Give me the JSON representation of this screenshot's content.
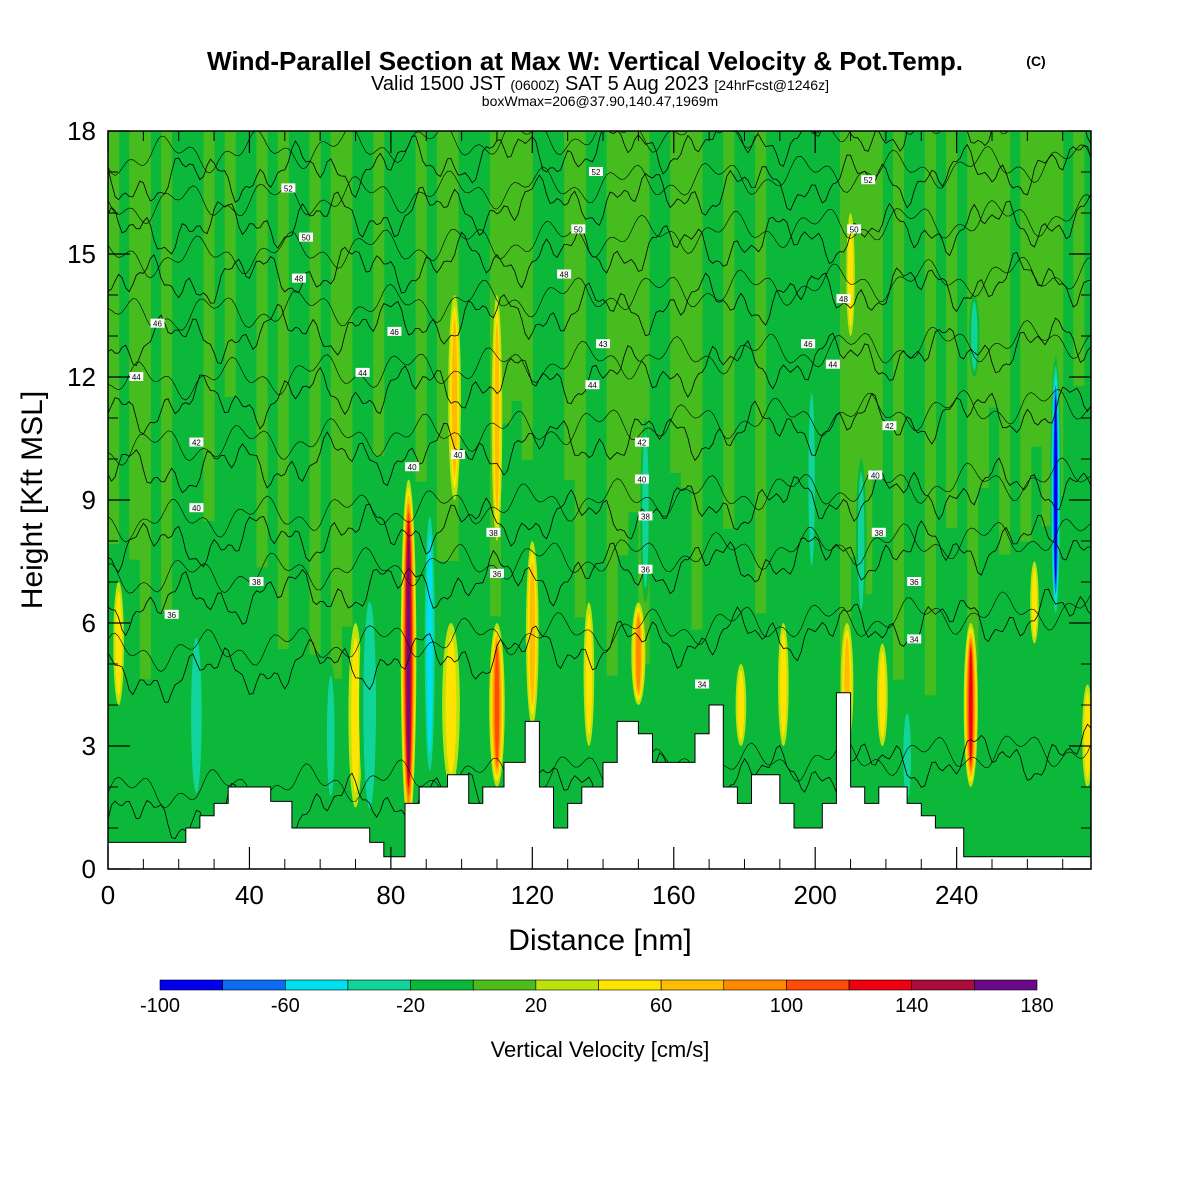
{
  "title": {
    "main": "Wind-Parallel Section at Max W: Vertical Velocity & Pot.Temp.",
    "copyright": "(C)",
    "valid_prefix": "Valid 1500 JST",
    "valid_zulu": "(0600Z)",
    "valid_date": "SAT 5 Aug 2023",
    "forecast": "[24hrFcst@1246z]",
    "box_info": "boxWmax=206@37.90,140.47,1969m"
  },
  "chart_data": {
    "type": "heatmap",
    "xlabel": "Distance [nm]",
    "ylabel": "Height [Kft MSL]",
    "xlim": [
      0,
      278
    ],
    "ylim": [
      0,
      18
    ],
    "x_ticks": [
      0,
      40,
      80,
      120,
      160,
      200,
      240
    ],
    "y_ticks": [
      0,
      3,
      6,
      9,
      12,
      15,
      18
    ],
    "colorbar": {
      "title": "Vertical Velocity [cm/s]",
      "levels": [
        -100,
        -80,
        -60,
        -40,
        -20,
        0,
        20,
        40,
        60,
        80,
        100,
        120,
        140,
        160,
        180
      ],
      "labels": [
        "-100",
        "-60",
        "-20",
        "20",
        "60",
        "100",
        "140",
        "180"
      ],
      "colors": [
        "#0000ee",
        "#0a6cf0",
        "#00e0f0",
        "#10d49a",
        "#0cb83a",
        "#4cbc1c",
        "#bce40c",
        "#ffe400",
        "#ffbc00",
        "#ff8a00",
        "#ff4a08",
        "#ee0010",
        "#aa0c3c",
        "#6a0a88"
      ]
    },
    "terrain_top_kft": [
      [
        0,
        0.65
      ],
      [
        22,
        0.65
      ],
      [
        22,
        1.0
      ],
      [
        26,
        1.0
      ],
      [
        26,
        1.3
      ],
      [
        30,
        1.3
      ],
      [
        30,
        1.6
      ],
      [
        34,
        1.6
      ],
      [
        34,
        2.0
      ],
      [
        46,
        2.0
      ],
      [
        46,
        1.65
      ],
      [
        52,
        1.65
      ],
      [
        52,
        1.0
      ],
      [
        74,
        1.0
      ],
      [
        74,
        0.65
      ],
      [
        78,
        0.65
      ],
      [
        78,
        0.3
      ],
      [
        84,
        0.3
      ],
      [
        84,
        1.6
      ],
      [
        88,
        1.6
      ],
      [
        88,
        2.0
      ],
      [
        96,
        2.0
      ],
      [
        96,
        2.3
      ],
      [
        102,
        2.3
      ],
      [
        102,
        1.6
      ],
      [
        106,
        1.6
      ],
      [
        106,
        2.0
      ],
      [
        112,
        2.0
      ],
      [
        112,
        2.6
      ],
      [
        118,
        2.6
      ],
      [
        118,
        3.6
      ],
      [
        122,
        3.6
      ],
      [
        122,
        2.0
      ],
      [
        126,
        2.0
      ],
      [
        126,
        1.0
      ],
      [
        130,
        1.0
      ],
      [
        130,
        1.6
      ],
      [
        134,
        1.6
      ],
      [
        134,
        2.0
      ],
      [
        140,
        2.0
      ],
      [
        140,
        2.6
      ],
      [
        144,
        2.6
      ],
      [
        144,
        3.6
      ],
      [
        150,
        3.6
      ],
      [
        150,
        3.3
      ],
      [
        154,
        3.3
      ],
      [
        154,
        2.6
      ],
      [
        166,
        2.6
      ],
      [
        166,
        3.3
      ],
      [
        170,
        3.3
      ],
      [
        170,
        4.0
      ],
      [
        174,
        4.0
      ],
      [
        174,
        2.0
      ],
      [
        178,
        2.0
      ],
      [
        178,
        1.6
      ],
      [
        182,
        1.6
      ],
      [
        182,
        2.3
      ],
      [
        190,
        2.3
      ],
      [
        190,
        1.6
      ],
      [
        194,
        1.6
      ],
      [
        194,
        1.0
      ],
      [
        202,
        1.0
      ],
      [
        202,
        1.6
      ],
      [
        206,
        1.6
      ],
      [
        206,
        4.3
      ],
      [
        210,
        4.3
      ],
      [
        210,
        2.0
      ],
      [
        214,
        2.0
      ],
      [
        214,
        1.6
      ],
      [
        218,
        1.6
      ],
      [
        218,
        2.0
      ],
      [
        226,
        2.0
      ],
      [
        226,
        1.6
      ],
      [
        230,
        1.6
      ],
      [
        230,
        1.3
      ],
      [
        234,
        1.3
      ],
      [
        234,
        1.0
      ],
      [
        242,
        1.0
      ],
      [
        242,
        0.3
      ],
      [
        278,
        0.3
      ]
    ],
    "vertical_velocity_features": [
      {
        "x": 3,
        "x_halfwidth": 1.5,
        "y_min": 4,
        "y_max": 7,
        "w": 40
      },
      {
        "x": 25,
        "x_halfwidth": 2.5,
        "y_min": 1.5,
        "y_max": 6,
        "w": -30
      },
      {
        "x": 63,
        "x_halfwidth": 1.8,
        "y_min": 1.5,
        "y_max": 5,
        "w": -30
      },
      {
        "x": 70,
        "x_halfwidth": 2,
        "y_min": 1.5,
        "y_max": 6,
        "w": 35
      },
      {
        "x": 74,
        "x_halfwidth": 3,
        "y_min": 1,
        "y_max": 7,
        "w": -40
      },
      {
        "x": 85,
        "x_halfwidth": 2.2,
        "y_min": 1,
        "y_max": 9.5,
        "w": 150
      },
      {
        "x": 91,
        "x_halfwidth": 2,
        "y_min": 2,
        "y_max": 9,
        "w": -55
      },
      {
        "x": 97,
        "x_halfwidth": 2.5,
        "y_min": 2,
        "y_max": 6,
        "w": 45
      },
      {
        "x": 98,
        "x_halfwidth": 1.8,
        "y_min": 9,
        "y_max": 14,
        "w": 50
      },
      {
        "x": 110,
        "x_halfwidth": 2.2,
        "y_min": 2,
        "y_max": 6,
        "w": 90
      },
      {
        "x": 110,
        "x_halfwidth": 1.5,
        "y_min": 8,
        "y_max": 14,
        "w": 50
      },
      {
        "x": 120,
        "x_halfwidth": 1.8,
        "y_min": 3.5,
        "y_max": 8,
        "w": 65
      },
      {
        "x": 136,
        "x_halfwidth": 1.5,
        "y_min": 3,
        "y_max": 6.5,
        "w": 45
      },
      {
        "x": 150,
        "x_halfwidth": 2,
        "y_min": 4,
        "y_max": 6.5,
        "w": 70
      },
      {
        "x": 152,
        "x_halfwidth": 1.5,
        "y_min": 6.5,
        "y_max": 11,
        "w": -35
      },
      {
        "x": 179,
        "x_halfwidth": 1.5,
        "y_min": 3,
        "y_max": 5,
        "w": 30
      },
      {
        "x": 191,
        "x_halfwidth": 1.5,
        "y_min": 3,
        "y_max": 6,
        "w": 30
      },
      {
        "x": 199,
        "x_halfwidth": 1.5,
        "y_min": 7,
        "y_max": 12,
        "w": -35
      },
      {
        "x": 209,
        "x_halfwidth": 1.8,
        "y_min": 3,
        "y_max": 6,
        "w": 55
      },
      {
        "x": 210,
        "x_halfwidth": 1.2,
        "y_min": 13,
        "y_max": 16,
        "w": 40
      },
      {
        "x": 213,
        "x_halfwidth": 1.5,
        "y_min": 6,
        "y_max": 10,
        "w": -35
      },
      {
        "x": 219,
        "x_halfwidth": 1.5,
        "y_min": 3,
        "y_max": 5.5,
        "w": 40
      },
      {
        "x": 226,
        "x_halfwidth": 1.8,
        "y_min": 1.5,
        "y_max": 4,
        "w": -40
      },
      {
        "x": 244,
        "x_halfwidth": 2,
        "y_min": 2,
        "y_max": 6,
        "w": 110
      },
      {
        "x": 245,
        "x_halfwidth": 1.5,
        "y_min": 12,
        "y_max": 14,
        "w": -30
      },
      {
        "x": 262,
        "x_halfwidth": 1.2,
        "y_min": 5.5,
        "y_max": 7.5,
        "w": 45
      },
      {
        "x": 268,
        "x_halfwidth": 1.5,
        "y_min": 6,
        "y_max": 12.5,
        "w": -90
      },
      {
        "x": 277,
        "x_halfwidth": 1.5,
        "y_min": 2,
        "y_max": 4.5,
        "w": 35
      }
    ],
    "theta_contours": [
      {
        "label": "34",
        "base_kft": 1.2
      },
      {
        "label": "36",
        "base_kft": 4.6
      },
      {
        "label": "38",
        "base_kft": 6.4
      },
      {
        "label": "40",
        "base_kft": 7.8
      },
      {
        "label": "42",
        "base_kft": 9.6
      },
      {
        "label": "44",
        "base_kft": 11.2
      },
      {
        "label": "46",
        "base_kft": 12.8
      },
      {
        "label": "48",
        "base_kft": 14.2
      },
      {
        "label": "50",
        "base_kft": 15.5
      },
      {
        "label": "52",
        "base_kft": 16.7
      }
    ],
    "contour_labels": [
      {
        "text": "52",
        "x": 51,
        "y": 16.6
      },
      {
        "text": "52",
        "x": 138,
        "y": 17.0
      },
      {
        "text": "52",
        "x": 215,
        "y": 16.8
      },
      {
        "text": "50",
        "x": 56,
        "y": 15.4
      },
      {
        "text": "50",
        "x": 133,
        "y": 15.6
      },
      {
        "text": "50",
        "x": 211,
        "y": 15.6
      },
      {
        "text": "48",
        "x": 54,
        "y": 14.4
      },
      {
        "text": "48",
        "x": 129,
        "y": 14.5
      },
      {
        "text": "48",
        "x": 208,
        "y": 13.9
      },
      {
        "text": "46",
        "x": 14,
        "y": 13.3
      },
      {
        "text": "46",
        "x": 81,
        "y": 13.1
      },
      {
        "text": "46",
        "x": 198,
        "y": 12.8
      },
      {
        "text": "44",
        "x": 8,
        "y": 12.0
      },
      {
        "text": "44",
        "x": 72,
        "y": 12.1
      },
      {
        "text": "44",
        "x": 137,
        "y": 11.8
      },
      {
        "text": "44",
        "x": 205,
        "y": 12.3
      },
      {
        "text": "43",
        "x": 140,
        "y": 12.8
      },
      {
        "text": "42",
        "x": 25,
        "y": 10.4
      },
      {
        "text": "42",
        "x": 151,
        "y": 10.4
      },
      {
        "text": "42",
        "x": 221,
        "y": 10.8
      },
      {
        "text": "40",
        "x": 25,
        "y": 8.8
      },
      {
        "text": "40",
        "x": 86,
        "y": 9.8
      },
      {
        "text": "40",
        "x": 99,
        "y": 10.1
      },
      {
        "text": "40",
        "x": 151,
        "y": 9.5
      },
      {
        "text": "40",
        "x": 217,
        "y": 9.6
      },
      {
        "text": "38",
        "x": 42,
        "y": 7.0
      },
      {
        "text": "38",
        "x": 109,
        "y": 8.2
      },
      {
        "text": "38",
        "x": 152,
        "y": 8.6
      },
      {
        "text": "38",
        "x": 218,
        "y": 8.2
      },
      {
        "text": "36",
        "x": 18,
        "y": 6.2
      },
      {
        "text": "36",
        "x": 110,
        "y": 7.2
      },
      {
        "text": "36",
        "x": 152,
        "y": 7.3
      },
      {
        "text": "36",
        "x": 228,
        "y": 7.0
      },
      {
        "text": "34",
        "x": 228,
        "y": 5.6
      },
      {
        "text": "34",
        "x": 168,
        "y": 4.5
      }
    ]
  }
}
